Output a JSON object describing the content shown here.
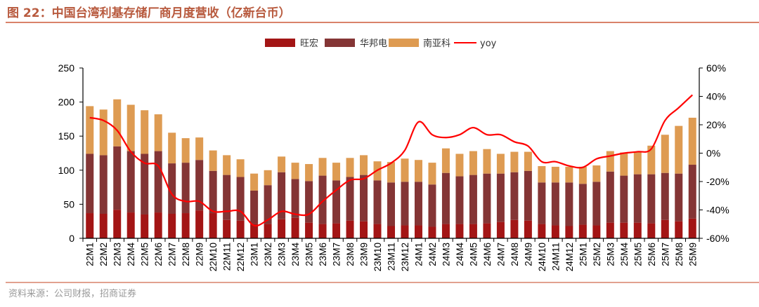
{
  "title": "图 22：中国台湾利基存储厂商月度营收（亿新台币）",
  "source": "资料来源：公司财报，招商证券",
  "colors": {
    "title": "#B85A3E",
    "rule": "#D9826A",
    "macronix": "#A31515",
    "winbond": "#843535",
    "nanya": "#DE9B52",
    "yoy": "#FF0000"
  },
  "chart_data": {
    "type": "bar",
    "stacked": true,
    "title": "图 22：中国台湾利基存储厂商月度营收（亿新台币）",
    "legend_position": "top-right",
    "categories": [
      "22M1",
      "22M2",
      "22M3",
      "22M4",
      "22M5",
      "22M6",
      "22M7",
      "22M8",
      "22M9",
      "22M10",
      "22M11",
      "22M12",
      "23M1",
      "23M2",
      "23M3",
      "23M4",
      "23M5",
      "23M6",
      "23M7",
      "23M8",
      "23M9",
      "23M10",
      "23M11",
      "23M12",
      "24M1",
      "24M2",
      "24M3",
      "24M4",
      "24M5",
      "24M6",
      "24M7",
      "24M8",
      "24M9",
      "24M10",
      "24M11",
      "24M12",
      "25M1",
      "25M2",
      "25M3",
      "25M4",
      "25M5",
      "25M6",
      "25M7",
      "25M8",
      "25M9"
    ],
    "series": [
      {
        "name": "旺宏",
        "type": "bar",
        "axis": "left",
        "values": [
          37,
          36,
          42,
          38,
          35,
          38,
          36,
          37,
          41,
          37,
          27,
          26,
          21,
          21,
          28,
          30,
          23,
          21,
          22,
          26,
          25,
          21,
          18,
          19,
          19,
          17,
          21,
          21,
          21,
          22,
          24,
          27,
          26,
          21,
          19,
          18,
          20,
          19,
          23,
          23,
          23,
          22,
          27,
          25,
          29
        ]
      },
      {
        "name": "华邦电",
        "type": "bar",
        "axis": "left",
        "values": [
          87,
          86,
          93,
          90,
          89,
          90,
          74,
          74,
          74,
          62,
          66,
          64,
          49,
          57,
          69,
          57,
          61,
          71,
          63,
          64,
          68,
          64,
          64,
          64,
          64,
          62,
          75,
          70,
          72,
          73,
          71,
          70,
          73,
          61,
          63,
          64,
          60,
          64,
          75,
          69,
          71,
          72,
          69,
          70,
          79
        ]
      },
      {
        "name": "南亚科",
        "type": "bar",
        "axis": "left",
        "values": [
          70,
          67,
          69,
          68,
          64,
          54,
          45,
          36,
          33,
          30,
          29,
          26,
          25,
          22,
          23,
          24,
          25,
          26,
          26,
          28,
          29,
          28,
          30,
          34,
          32,
          32,
          36,
          33,
          35,
          36,
          29,
          30,
          28,
          24,
          23,
          23,
          25,
          24,
          30,
          34,
          33,
          42,
          56,
          70,
          69
        ]
      },
      {
        "name": "yoy",
        "type": "line",
        "axis": "right",
        "values": [
          25,
          23,
          16,
          1,
          -7,
          -9,
          -29,
          -34,
          -34,
          -41,
          -41,
          -41,
          -51,
          -47,
          -41,
          -43,
          -43,
          -34,
          -26,
          -19,
          -18,
          -12,
          -7,
          2,
          22,
          13,
          11,
          13,
          18,
          13,
          13,
          8,
          5,
          -6,
          -6,
          -9,
          -10,
          -4,
          -2,
          0,
          1,
          3,
          23,
          32,
          41
        ]
      }
    ],
    "ylim": [
      0,
      250
    ],
    "yticks": [
      "0",
      "50",
      "100",
      "150",
      "200",
      "250"
    ],
    "y2lim": [
      -60,
      60
    ],
    "y2ticks": [
      "-60%",
      "-40%",
      "-20%",
      "0%",
      "20%",
      "40%",
      "60%"
    ],
    "xlabel": "",
    "ylabel": "",
    "grid": false
  }
}
